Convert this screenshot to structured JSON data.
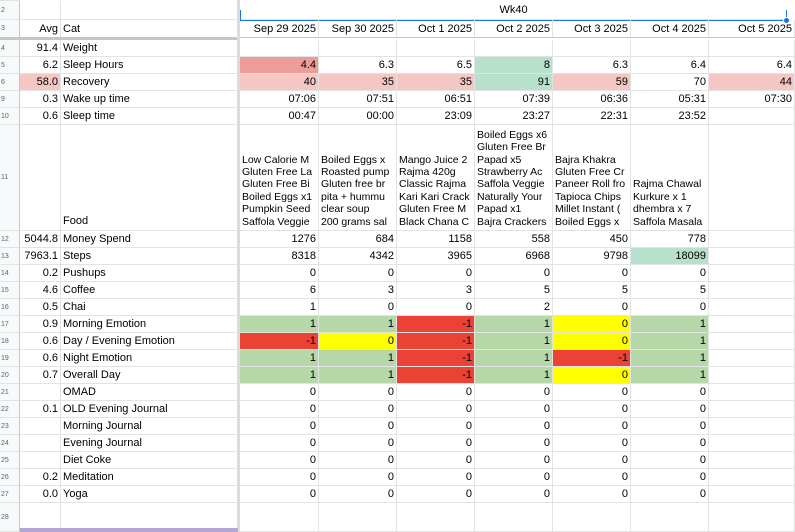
{
  "week_label": "Wk40",
  "headers": {
    "avg": "Avg",
    "cat": "Cat"
  },
  "dates": [
    "Sep 29 2025",
    "Sep 30 2025",
    "Oct 1 2025",
    "Oct 2 2025",
    "Oct 3 2025",
    "Oct 4 2025",
    "Oct 5 2025"
  ],
  "row_numbers": [
    "2",
    "3",
    "4",
    "5",
    "6",
    "9",
    "10",
    "11",
    "12",
    "13",
    "14",
    "15",
    "16",
    "17",
    "18",
    "19",
    "20",
    "21",
    "22",
    "23",
    "24",
    "25",
    "26",
    "27",
    "28"
  ],
  "colors": {
    "red": "#ea4335",
    "yellow": "#ffff00",
    "green": "#b6d7a8",
    "mint": "#b7e1cd",
    "pink": "#f4c7c3",
    "deep_pink": "#ec9d9a",
    "selection": "#1a73e8"
  },
  "rows": [
    {
      "num": "4",
      "avg": "91.4",
      "cat": "Weight",
      "values": [
        "",
        "",
        "",
        "",
        "",
        "",
        ""
      ],
      "fills": []
    },
    {
      "num": "5",
      "avg": "6.2",
      "cat": "Sleep Hours",
      "values": [
        "4.4",
        "6.3",
        "6.5",
        "8",
        "6.3",
        "6.4",
        "6.4"
      ],
      "fills": [
        "deep_pink",
        "",
        "",
        "mint",
        "",
        "",
        ""
      ]
    },
    {
      "num": "6",
      "avg": "58.0",
      "cat": "Recovery",
      "values": [
        "40",
        "35",
        "35",
        "91",
        "59",
        "70",
        "44"
      ],
      "fills": [
        "pink",
        "pink",
        "pink",
        "mint",
        "pink",
        "",
        "pink"
      ],
      "avg_fill": "pink"
    },
    {
      "num": "9",
      "avg": "0.3",
      "cat": "Wake up time",
      "values": [
        "07:06",
        "07:51",
        "06:51",
        "07:39",
        "06:36",
        "05:31",
        "07:30"
      ],
      "fills": []
    },
    {
      "num": "10",
      "avg": "0.6",
      "cat": "Sleep time",
      "values": [
        "00:47",
        "00:00",
        "23:09",
        "23:27",
        "22:31",
        "23:52",
        ""
      ],
      "fills": []
    },
    {
      "num": "12",
      "avg": "5044.8",
      "cat": "Money Spend",
      "values": [
        "1276",
        "684",
        "1158",
        "558",
        "450",
        "778",
        ""
      ],
      "fills": []
    },
    {
      "num": "13",
      "avg": "7963.1",
      "cat": "Steps",
      "values": [
        "8318",
        "4342",
        "3965",
        "6968",
        "9798",
        "18099",
        ""
      ],
      "fills": [
        "",
        "",
        "",
        "",
        "",
        "mint",
        ""
      ]
    },
    {
      "num": "14",
      "avg": "0.2",
      "cat": "Pushups",
      "values": [
        "0",
        "0",
        "0",
        "0",
        "0",
        "0",
        ""
      ],
      "fills": []
    },
    {
      "num": "15",
      "avg": "4.6",
      "cat": "Coffee",
      "values": [
        "6",
        "3",
        "3",
        "5",
        "5",
        "5",
        ""
      ],
      "fills": []
    },
    {
      "num": "16",
      "avg": "0.5",
      "cat": "Chai",
      "values": [
        "1",
        "0",
        "0",
        "2",
        "0",
        "0",
        ""
      ],
      "fills": []
    },
    {
      "num": "17",
      "avg": "0.9",
      "cat": "Morning Emotion",
      "values": [
        "1",
        "1",
        "-1",
        "1",
        "0",
        "1",
        ""
      ],
      "fills": [
        "green",
        "green",
        "red",
        "green",
        "yellow",
        "green",
        ""
      ]
    },
    {
      "num": "18",
      "avg": "0.6",
      "cat": "Day / Evening Emotion",
      "values": [
        "-1",
        "0",
        "-1",
        "1",
        "0",
        "1",
        ""
      ],
      "fills": [
        "red",
        "yellow",
        "red",
        "green",
        "yellow",
        "green",
        ""
      ]
    },
    {
      "num": "19",
      "avg": "0.6",
      "cat": "Night Emotion",
      "values": [
        "1",
        "1",
        "-1",
        "1",
        "-1",
        "1",
        ""
      ],
      "fills": [
        "green",
        "green",
        "red",
        "green",
        "red",
        "green",
        ""
      ]
    },
    {
      "num": "20",
      "avg": "0.7",
      "cat": "Overall Day",
      "values": [
        "1",
        "1",
        "-1",
        "1",
        "0",
        "1",
        ""
      ],
      "fills": [
        "green",
        "green",
        "red",
        "green",
        "yellow",
        "green",
        ""
      ]
    },
    {
      "num": "21",
      "avg": "",
      "cat": "OMAD",
      "values": [
        "0",
        "0",
        "0",
        "0",
        "0",
        "0",
        ""
      ],
      "fills": []
    },
    {
      "num": "22",
      "avg": "0.1",
      "cat": "OLD Evening Journal",
      "values": [
        "0",
        "0",
        "0",
        "0",
        "0",
        "0",
        ""
      ],
      "fills": []
    },
    {
      "num": "23",
      "avg": "",
      "cat": "Morning Journal",
      "values": [
        "0",
        "0",
        "0",
        "0",
        "0",
        "0",
        ""
      ],
      "fills": []
    },
    {
      "num": "24",
      "avg": "",
      "cat": "Evening Journal",
      "values": [
        "0",
        "0",
        "0",
        "0",
        "0",
        "0",
        ""
      ],
      "fills": []
    },
    {
      "num": "25",
      "avg": "",
      "cat": "Diet Coke",
      "values": [
        "0",
        "0",
        "0",
        "0",
        "0",
        "0",
        ""
      ],
      "fills": []
    },
    {
      "num": "26",
      "avg": "0.2",
      "cat": "Meditation",
      "values": [
        "0",
        "0",
        "0",
        "0",
        "0",
        "0",
        ""
      ],
      "fills": []
    },
    {
      "num": "27",
      "avg": "0.0",
      "cat": "Yoga",
      "values": [
        "0",
        "0",
        "0",
        "0",
        "0",
        "0",
        ""
      ],
      "fills": []
    }
  ],
  "food_row": {
    "num": "11",
    "cat": "Food",
    "cells": [
      [
        "Low Calorie M",
        "Gluten Free La",
        "Gluten Free Bi",
        "Boiled Eggs x1",
        "Pumpkin Seed",
        "Saffola Veggie"
      ],
      [
        "Boiled Eggs x",
        "Roasted pump",
        "Gluten free br",
        "pita + hummu",
        "clear soup",
        "200 grams sal"
      ],
      [
        "Mango Juice 2",
        "Rajma 420g",
        "Classic Rajma",
        "Kari Kari Crack",
        "Gluten Free M",
        "Black Chana C"
      ],
      [
        "Boiled Eggs x6",
        "Gluten Free Br",
        "Papad x5",
        "Strawberry Ac",
        "Saffola Veggie",
        "Naturally Your",
        "Papad x1",
        "Bajra Crackers"
      ],
      [
        "Bajra Khakra",
        "Gluten Free Cr",
        "Paneer Roll fro",
        "Tapioca Chips",
        "Millet Instant (",
        "Boiled Eggs x"
      ],
      [
        "Rajma Chawal",
        "Kurkure x 1",
        "dhembra x 7",
        "Saffola Masala"
      ],
      []
    ]
  }
}
